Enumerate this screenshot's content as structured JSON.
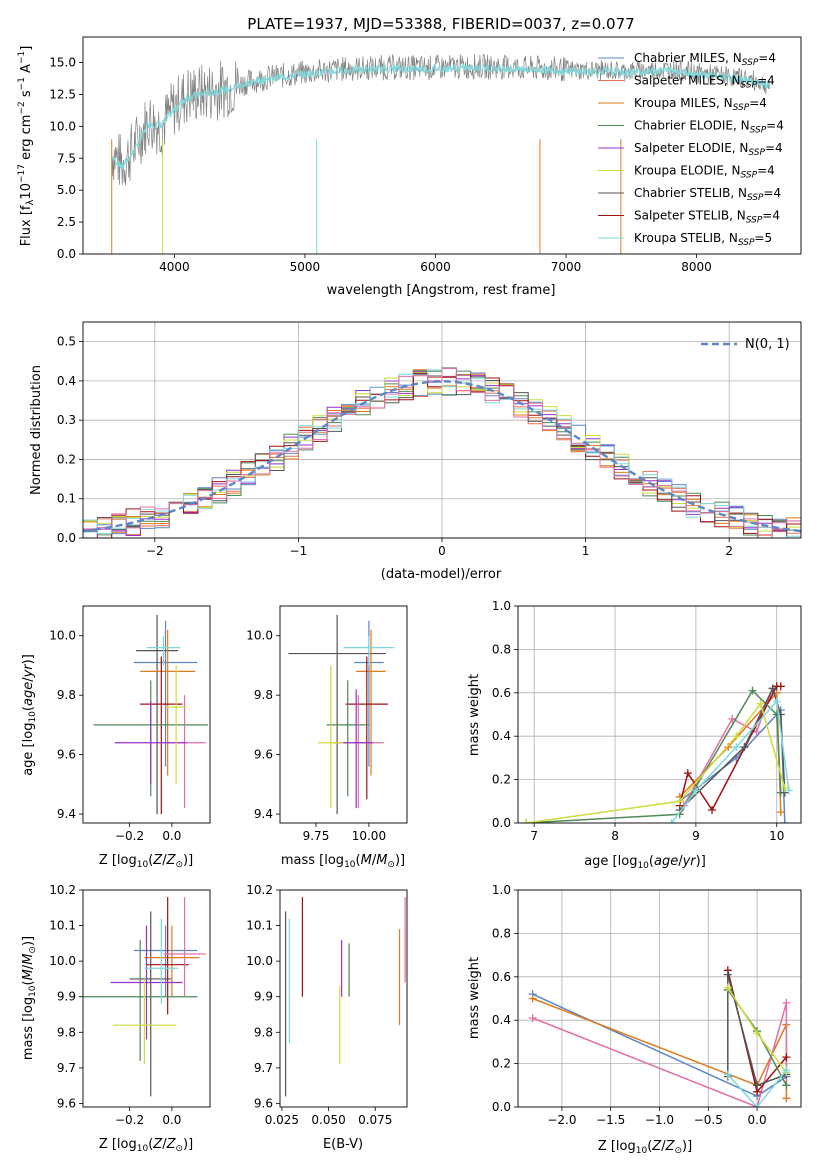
{
  "chart_data": [
    {
      "type": "line",
      "title": "PLATE=1937, MJD=53388, FIBERID=0037, z=0.077",
      "xlabel": "wavelength [Angstrom, rest frame]",
      "ylabel": "Flux [f_λ 10^-17 erg cm^-2 s^-1 A^-1]",
      "xlim": [
        3300,
        8800
      ],
      "ylim": [
        0,
        17
      ],
      "xticks": [
        4000,
        5000,
        6000,
        7000,
        8000
      ],
      "yticks": [
        0.0,
        2.5,
        5.0,
        7.5,
        10.0,
        12.5,
        15.0
      ],
      "legend_position": "right",
      "legend": [
        {
          "label": "Chabrier MILES, N_SSP=4",
          "color": "#5b86c8"
        },
        {
          "label": "Salpeter MILES, N_SSP=4",
          "color": "#e2725b"
        },
        {
          "label": "Kroupa MILES, N_SSP=4",
          "color": "#e07b1f"
        },
        {
          "label": "Chabrier ELODIE, N_SSP=4",
          "color": "#4f8a57"
        },
        {
          "label": "Salpeter ELODIE, N_SSP=4",
          "color": "#9b30c8"
        },
        {
          "label": "Kroupa ELODIE, N_SSP=4",
          "color": "#cddc39"
        },
        {
          "label": "Chabrier STELIB, N_SSP=4",
          "color": "#555555"
        },
        {
          "label": "Salpeter STELIB, N_SSP=4",
          "color": "#a01010"
        },
        {
          "label": "Kroupa STELIB, N_SSP=5",
          "color": "#7fd8dc"
        }
      ],
      "data_color": "#808080",
      "model_color": "#7fd8dc",
      "series": [
        {
          "name": "data",
          "x": [
            3520,
            3600,
            3700,
            3800,
            3900,
            4000,
            4100,
            4200,
            4300,
            4400,
            4500,
            4700,
            5000,
            5300,
            5600,
            6000,
            6300,
            6600,
            6900,
            7100,
            7300,
            7450,
            7600,
            7800,
            8000,
            8200,
            8400,
            8560
          ],
          "y": [
            8.0,
            7.0,
            8.5,
            10.5,
            10.0,
            11.5,
            12.5,
            12.6,
            12.8,
            13.0,
            13.3,
            13.8,
            14.2,
            14.5,
            14.6,
            14.6,
            14.7,
            14.6,
            14.5,
            14.4,
            14.4,
            14.3,
            14.4,
            14.5,
            14.2,
            14.0,
            13.7,
            13.2
          ]
        },
        {
          "name": "model",
          "x": [
            3520,
            3600,
            3700,
            3800,
            3900,
            4000,
            4100,
            4200,
            4300,
            4400,
            4500,
            4700,
            5000,
            5300,
            5600,
            6000,
            6300,
            6600,
            6900,
            7100,
            7300,
            7450,
            7600,
            7800,
            8000,
            8200,
            8400,
            8560
          ],
          "y": [
            7.6,
            6.8,
            8.2,
            10.2,
            10.1,
            11.3,
            12.3,
            12.5,
            12.7,
            12.9,
            13.2,
            13.7,
            14.1,
            14.4,
            14.5,
            14.5,
            14.6,
            14.5,
            14.4,
            14.3,
            14.3,
            14.2,
            14.3,
            14.4,
            14.1,
            13.9,
            13.6,
            13.1
          ]
        }
      ]
    },
    {
      "type": "line",
      "xlabel": "(data-model)/error",
      "ylabel": "Normed distribution",
      "xlim": [
        -2.5,
        2.5
      ],
      "ylim": [
        0,
        0.55
      ],
      "xticks": [
        -2,
        -1,
        0,
        1,
        2
      ],
      "yticks": [
        0.0,
        0.1,
        0.2,
        0.3,
        0.4,
        0.5
      ],
      "grid": true,
      "legend_position": "top-right",
      "gaussian_label": "N(0, 1)",
      "gaussian_color": "#5b86c8",
      "bin_width": 0.1,
      "bin_start": -2.5,
      "hist_colors": [
        "#5b86c8",
        "#e2725b",
        "#e07b1f",
        "#4f8a57",
        "#9b30c8",
        "#cddc39",
        "#555555",
        "#a01010",
        "#7fd8dc",
        "#e36fa8"
      ]
    },
    {
      "type": "scatter",
      "xlabel": "Z [log10(Z/Z☉)]",
      "ylabel": "age [log10(age/yr)]",
      "xlim": [
        -0.42,
        0.18
      ],
      "ylim": [
        9.37,
        10.1
      ],
      "xticks": [
        -0.2,
        0.0
      ],
      "yticks": [
        9.4,
        9.6,
        9.8,
        10.0
      ],
      "points": [
        {
          "x": -0.03,
          "y": 9.91,
          "xerr": 0.15,
          "y_low": 9.56,
          "y_high": 10.05,
          "color": "#5b86c8"
        },
        {
          "x": -0.07,
          "y": 9.95,
          "xerr": 0.1,
          "y_low": 9.4,
          "y_high": 10.07,
          "color": "#555555"
        },
        {
          "x": -0.02,
          "y": 9.88,
          "xerr": 0.13,
          "y_low": 9.53,
          "y_high": 10.02,
          "color": "#e07b1f"
        },
        {
          "x": -0.05,
          "y": 9.77,
          "xerr": 0.1,
          "y_low": 9.4,
          "y_high": 9.93,
          "color": "#a01010"
        },
        {
          "x": -0.1,
          "y": 9.7,
          "xerr": 0.27,
          "y_low": 9.46,
          "y_high": 9.85,
          "color": "#4f8a57"
        },
        {
          "x": 0.06,
          "y": 9.64,
          "xerr": 0.1,
          "y_low": 9.42,
          "y_high": 9.8,
          "color": "#e36fa8"
        },
        {
          "x": -0.1,
          "y": 9.64,
          "xerr": 0.17,
          "y_low": 9.5,
          "y_high": 9.78,
          "color": "#9b30c8"
        },
        {
          "x": -0.04,
          "y": 9.96,
          "xerr": 0.08,
          "y_low": 9.9,
          "y_high": 10.0,
          "color": "#7fd8dc"
        },
        {
          "x": 0.02,
          "y": 9.76,
          "xerr": 0.05,
          "y_low": 9.5,
          "y_high": 9.9,
          "color": "#cddc39"
        }
      ]
    },
    {
      "type": "scatter",
      "xlabel": "mass [log10(M/M☉)]",
      "ylabel": "",
      "xlim": [
        9.58,
        10.18
      ],
      "ylim": [
        9.37,
        10.1
      ],
      "xticks": [
        9.75,
        10.0
      ],
      "xtick_labels": [
        "9.75",
        "10.00"
      ],
      "yticks": [
        9.4,
        9.6,
        9.8,
        10.0
      ],
      "points": [
        {
          "x": 10.0,
          "y": 9.91,
          "xerr": 0.07,
          "y_low": 9.56,
          "y_high": 10.05,
          "color": "#5b86c8"
        },
        {
          "x": 9.85,
          "y": 9.94,
          "xerr": 0.23,
          "y_low": 9.4,
          "y_high": 10.07,
          "color": "#555555"
        },
        {
          "x": 10.01,
          "y": 9.88,
          "xerr": 0.07,
          "y_low": 9.53,
          "y_high": 10.02,
          "color": "#e07b1f"
        },
        {
          "x": 9.99,
          "y": 9.77,
          "xerr": 0.1,
          "y_low": 9.45,
          "y_high": 9.93,
          "color": "#a01010"
        },
        {
          "x": 9.9,
          "y": 9.7,
          "xerr": 0.1,
          "y_low": 9.46,
          "y_high": 9.85,
          "color": "#4f8a57"
        },
        {
          "x": 9.95,
          "y": 9.64,
          "xerr": 0.12,
          "y_low": 9.42,
          "y_high": 9.8,
          "color": "#e36fa8"
        },
        {
          "x": 9.94,
          "y": 9.64,
          "xerr": 0.08,
          "y_low": 9.42,
          "y_high": 9.82,
          "color": "#9b30c8"
        },
        {
          "x": 10.0,
          "y": 9.96,
          "xerr": 0.12,
          "y_low": 9.9,
          "y_high": 10.0,
          "color": "#7fd8dc"
        },
        {
          "x": 9.82,
          "y": 9.64,
          "xerr": 0.06,
          "y_low": 9.42,
          "y_high": 9.9,
          "color": "#cddc39"
        }
      ]
    },
    {
      "type": "line",
      "xlabel": "age [log10(age/yr)]",
      "ylabel": "mass weight",
      "xlim": [
        6.8,
        10.3
      ],
      "ylim": [
        0,
        1.0
      ],
      "xticks": [
        7,
        8,
        9,
        10
      ],
      "yticks": [
        0.0,
        0.2,
        0.4,
        0.6,
        0.8,
        1.0
      ],
      "grid": true,
      "series": [
        {
          "color": "#5b86c8",
          "x": [
            8.8,
            9.5,
            10.05,
            10.1
          ],
          "y": [
            0.1,
            0.3,
            0.52,
            0.0
          ]
        },
        {
          "color": "#e07b1f",
          "x": [
            8.8,
            9.4,
            10.0,
            10.05
          ],
          "y": [
            0.12,
            0.35,
            0.6,
            0.05
          ]
        },
        {
          "color": "#e36fa8",
          "x": [
            8.85,
            9.45,
            9.75,
            9.95
          ],
          "y": [
            0.08,
            0.48,
            0.42,
            0.62
          ]
        },
        {
          "color": "#a01010",
          "x": [
            8.8,
            8.9,
            9.2,
            10.0,
            10.05
          ],
          "y": [
            0.08,
            0.23,
            0.06,
            0.63,
            0.63
          ]
        },
        {
          "color": "#4f8a57",
          "x": [
            6.9,
            8.8,
            9.7,
            10.0,
            10.05
          ],
          "y": [
            0.0,
            0.04,
            0.61,
            0.5,
            0.14
          ]
        },
        {
          "color": "#555555",
          "x": [
            8.8,
            9.6,
            9.95,
            10.05,
            10.1
          ],
          "y": [
            0.06,
            0.35,
            0.62,
            0.5,
            0.14
          ]
        },
        {
          "color": "#cddc39",
          "x": [
            6.9,
            8.8,
            9.5,
            9.8,
            10.1
          ],
          "y": [
            0.0,
            0.1,
            0.4,
            0.55,
            0.16
          ]
        },
        {
          "color": "#7fd8dc",
          "x": [
            8.7,
            9.0,
            9.5,
            10.0,
            10.15
          ],
          "y": [
            0.0,
            0.15,
            0.35,
            0.56,
            0.15
          ]
        }
      ]
    },
    {
      "type": "scatter",
      "xlabel": "Z [log10(Z/Z☉)]",
      "ylabel": "mass [log10(M/M☉)]",
      "xlim": [
        -0.42,
        0.18
      ],
      "ylim": [
        9.59,
        10.2
      ],
      "xticks": [
        -0.2,
        0.0
      ],
      "yticks": [
        9.6,
        9.7,
        9.8,
        9.9,
        10.0,
        10.1,
        10.2
      ],
      "points": [
        {
          "x": -0.03,
          "y": 10.03,
          "xerr": 0.15,
          "y_low": 9.9,
          "y_high": 10.1,
          "color": "#5b86c8"
        },
        {
          "x": -0.1,
          "y": 9.95,
          "xerr": 0.1,
          "y_low": 9.62,
          "y_high": 10.14,
          "color": "#555555"
        },
        {
          "x": 0.0,
          "y": 10.01,
          "xerr": 0.13,
          "y_low": 9.9,
          "y_high": 10.1,
          "color": "#e07b1f"
        },
        {
          "x": -0.02,
          "y": 9.99,
          "xerr": 0.1,
          "y_low": 9.85,
          "y_high": 10.18,
          "color": "#a01010"
        },
        {
          "x": -0.15,
          "y": 9.9,
          "xerr": 0.27,
          "y_low": 9.72,
          "y_high": 10.06,
          "color": "#4f8a57"
        },
        {
          "x": 0.06,
          "y": 10.02,
          "xerr": 0.1,
          "y_low": 9.9,
          "y_high": 10.18,
          "color": "#e36fa8"
        },
        {
          "x": -0.12,
          "y": 9.94,
          "xerr": 0.17,
          "y_low": 9.78,
          "y_high": 10.1,
          "color": "#9b30c8"
        },
        {
          "x": -0.05,
          "y": 9.98,
          "xerr": 0.08,
          "y_low": 9.88,
          "y_high": 10.12,
          "color": "#7fd8dc"
        },
        {
          "x": -0.13,
          "y": 9.82,
          "xerr": 0.15,
          "y_low": 9.71,
          "y_high": 9.95,
          "color": "#cddc39"
        }
      ]
    },
    {
      "type": "scatter",
      "xlabel": "E(B-V)",
      "ylabel": "",
      "xlim": [
        0.024,
        0.092
      ],
      "ylim": [
        9.59,
        10.2
      ],
      "xticks": [
        0.025,
        0.05,
        0.075
      ],
      "xtick_labels": [
        "0.025",
        "0.050",
        "0.075"
      ],
      "yticks": [
        9.6,
        9.7,
        9.8,
        9.9,
        10.0,
        10.1,
        10.2
      ],
      "points": [
        {
          "x": 0.027,
          "y": 9.8,
          "y_low": 9.62,
          "y_high": 10.14,
          "color": "#555555"
        },
        {
          "x": 0.029,
          "y": 9.95,
          "y_low": 9.77,
          "y_high": 10.12,
          "color": "#7fd8dc"
        },
        {
          "x": 0.036,
          "y": 10.0,
          "y_low": 9.9,
          "y_high": 10.18,
          "color": "#a01010"
        },
        {
          "x": 0.056,
          "y": 9.82,
          "y_low": 9.71,
          "y_high": 9.93,
          "color": "#cddc39"
        },
        {
          "x": 0.057,
          "y": 9.99,
          "y_low": 9.9,
          "y_high": 10.06,
          "color": "#9b30c8"
        },
        {
          "x": 0.061,
          "y": 10.0,
          "y_low": 9.9,
          "y_high": 10.05,
          "color": "#4f8a57"
        },
        {
          "x": 0.088,
          "y": 9.95,
          "y_low": 9.82,
          "y_high": 10.09,
          "color": "#e07b1f"
        },
        {
          "x": 0.091,
          "y": 10.05,
          "y_low": 9.94,
          "y_high": 10.18,
          "color": "#e36fa8"
        }
      ]
    },
    {
      "type": "line",
      "xlabel": "Z [log10(Z/Z☉)]",
      "ylabel": "mass weight",
      "xlim": [
        -2.45,
        0.45
      ],
      "ylim": [
        0,
        1.0
      ],
      "xticks": [
        -2.0,
        -1.5,
        -1.0,
        -0.5,
        0.0
      ],
      "yticks": [
        0.0,
        0.2,
        0.4,
        0.6,
        0.8,
        1.0
      ],
      "grid": true,
      "series": [
        {
          "color": "#5b86c8",
          "x": [
            -2.3,
            0.0,
            0.3
          ],
          "y": [
            0.52,
            0.05,
            0.14
          ]
        },
        {
          "color": "#e07b1f",
          "x": [
            -2.3,
            0.0,
            0.3,
            0.3
          ],
          "y": [
            0.5,
            0.1,
            0.38,
            0.04
          ]
        },
        {
          "color": "#e36fa8",
          "x": [
            -2.3,
            0.0,
            0.3,
            0.3
          ],
          "y": [
            0.41,
            0.0,
            0.48,
            0.1
          ]
        },
        {
          "color": "#a01010",
          "x": [
            -0.3,
            0.0,
            0.3
          ],
          "y": [
            0.63,
            0.07,
            0.23
          ]
        },
        {
          "color": "#4f8a57",
          "x": [
            -0.3,
            0.0,
            0.3
          ],
          "y": [
            0.54,
            0.35,
            0.1
          ]
        },
        {
          "color": "#555555",
          "x": [
            -0.3,
            -0.3,
            0.0,
            0.3
          ],
          "y": [
            0.14,
            0.61,
            0.1,
            0.15
          ]
        },
        {
          "color": "#cddc39",
          "x": [
            -0.3,
            0.0,
            0.3
          ],
          "y": [
            0.55,
            0.34,
            0.16
          ]
        },
        {
          "color": "#7fd8dc",
          "x": [
            -0.3,
            0.0,
            0.3
          ],
          "y": [
            0.15,
            0.0,
            0.17
          ]
        }
      ]
    }
  ]
}
